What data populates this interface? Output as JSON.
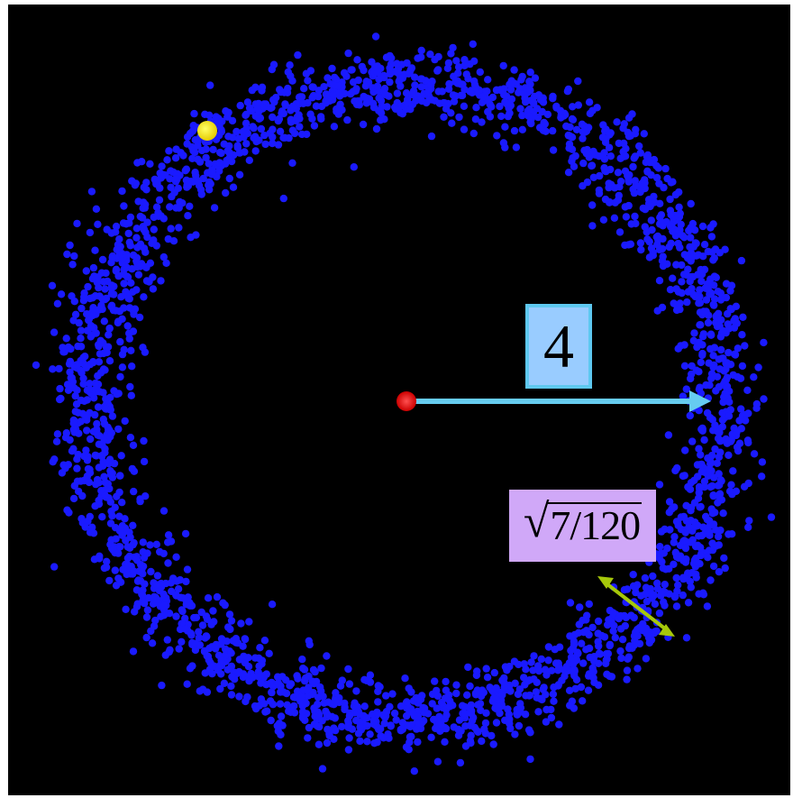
{
  "diagram": {
    "radius_label": "4",
    "width_label_radicand": "7/120",
    "colors": {
      "background": "#000000",
      "points": "#1a1aff",
      "center": "#ff1a1a",
      "highlight": "#ffee00",
      "radius_arrow": "#66ccf0",
      "width_arrow": "#a6c80a",
      "radius_label_bg": "#99ccff",
      "width_label_bg": "#d0a8f8"
    },
    "ring": {
      "radius": 4,
      "band_sd": 0.2415,
      "point_count": 2600
    }
  }
}
